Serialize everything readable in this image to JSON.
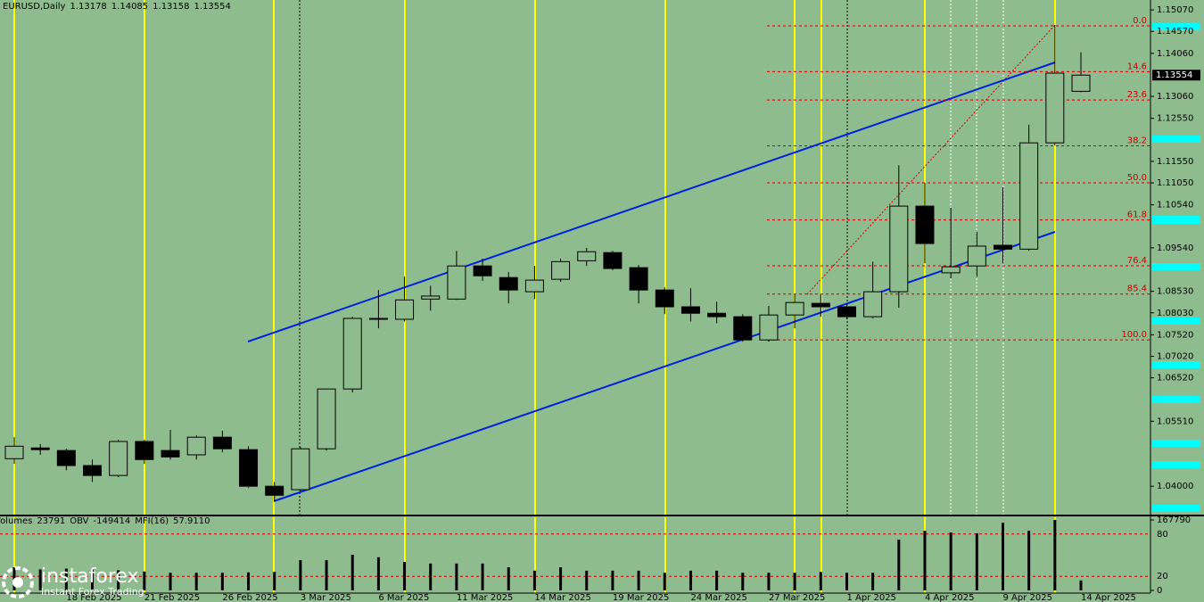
{
  "header": {
    "symbol": "EURUSD,Daily"
  },
  "watermark": {
    "brand": "instaforex",
    "tagline": "Instant Forex Trading"
  },
  "chart_data": [
    {
      "type": "candlestick",
      "title": "EURUSD,Daily",
      "categories": [
        null,
        null,
        "18 Feb 2025",
        null,
        null,
        "21 Feb 2025",
        null,
        null,
        "26 Feb 2025",
        null,
        null,
        "3 Mar 2025",
        null,
        null,
        "6 Mar 2025",
        null,
        null,
        "11 Mar 2025",
        null,
        null,
        "14 Mar 2025",
        null,
        null,
        "19 Mar 2025",
        null,
        null,
        "24 Mar 2025",
        null,
        null,
        "27 Mar 2025",
        null,
        null,
        "1 Apr 2025",
        null,
        null,
        "4 Apr 2025",
        null,
        null,
        "9 Apr 2025",
        null,
        null,
        "14 Apr 2025"
      ],
      "open": [
        1.0464,
        1.0489,
        1.0483,
        1.0448,
        1.0425,
        1.0504,
        1.0483,
        1.0473,
        1.0514,
        1.0485,
        1.04,
        1.0392,
        1.0487,
        1.0626,
        1.0788,
        1.0788,
        1.0835,
        1.0835,
        1.0912,
        1.0885,
        1.0852,
        1.0881,
        1.0924,
        1.0943,
        1.0908,
        1.0856,
        1.0817,
        1.0802,
        1.0794,
        1.074,
        1.0798,
        1.0825,
        1.0817,
        1.0794,
        1.0852,
        1.1051,
        1.0896,
        1.0912,
        1.096,
        1.0951,
        1.1198,
        1.13178
      ],
      "high": [
        1.0514,
        1.0498,
        1.0487,
        1.0462,
        1.0508,
        1.0508,
        1.0531,
        1.0518,
        1.0529,
        1.0493,
        1.041,
        1.0491,
        1.0626,
        1.0794,
        1.0856,
        1.0887,
        1.0866,
        1.0947,
        1.0929,
        1.0898,
        1.0912,
        1.0929,
        1.0954,
        1.0947,
        1.0914,
        1.0862,
        1.086,
        1.0829,
        1.08,
        1.0819,
        1.0846,
        1.0846,
        1.0825,
        1.0922,
        1.1146,
        1.1105,
        1.1047,
        1.0991,
        1.1095,
        1.124,
        1.1472,
        1.14085
      ],
      "low": [
        1.0452,
        1.0473,
        1.0437,
        1.041,
        1.0421,
        1.0452,
        1.0462,
        1.0462,
        1.0479,
        1.0396,
        1.0365,
        1.0388,
        1.0483,
        1.0618,
        1.0767,
        1.0783,
        1.0808,
        1.0833,
        1.0877,
        1.0825,
        1.0835,
        1.0875,
        1.0912,
        1.0902,
        1.0825,
        1.08,
        1.0783,
        1.0779,
        1.0736,
        1.0736,
        1.0767,
        1.0794,
        1.0788,
        1.079,
        1.0815,
        1.0918,
        1.0883,
        1.0887,
        1.0918,
        1.0947,
        1.1192,
        1.13158
      ],
      "close": [
        1.0493,
        1.0485,
        1.0448,
        1.0425,
        1.0504,
        1.0462,
        1.0468,
        1.0514,
        1.0487,
        1.04,
        1.0379,
        1.0487,
        1.0626,
        1.079,
        1.079,
        1.0833,
        1.0842,
        1.0912,
        1.0889,
        1.0856,
        1.0879,
        1.0922,
        1.0945,
        1.0906,
        1.0856,
        1.0817,
        1.0802,
        1.0794,
        1.074,
        1.0798,
        1.0827,
        1.0817,
        1.0794,
        1.0852,
        1.1051,
        1.0964,
        1.091,
        1.0958,
        1.0951,
        1.1198,
        1.136,
        1.13554
      ],
      "bull_color": "#8fbc8f",
      "bear_color": "#000000",
      "ylim": [
        1.0332,
        1.153
      ],
      "yticks": [
        {
          "value": 1.1507,
          "label": "1.15070"
        },
        {
          "value": 1.1457,
          "label": "1.14570"
        },
        {
          "value": 1.1406,
          "label": "1.14060"
        },
        {
          "value": 1.1306,
          "label": "1.13060"
        },
        {
          "value": 1.1255,
          "label": "1.12550"
        },
        {
          "value": 1.1155,
          "label": "1.11550"
        },
        {
          "value": 1.1105,
          "label": "1.11050"
        },
        {
          "value": 1.1054,
          "label": "1.10540"
        },
        {
          "value": 1.0954,
          "label": "1.09540"
        },
        {
          "value": 1.0853,
          "label": "1.08530"
        },
        {
          "value": 1.0803,
          "label": "1.08030"
        },
        {
          "value": 1.0752,
          "label": "1.07520"
        },
        {
          "value": 1.0702,
          "label": "1.07020"
        },
        {
          "value": 1.0652,
          "label": "1.06520"
        },
        {
          "value": 1.0551,
          "label": "1.05510"
        },
        {
          "value": 1.04,
          "label": "1.04000"
        }
      ],
      "fibonacci": {
        "high": 1.147,
        "low": 1.074,
        "color": "#cc0000",
        "levels": [
          {
            "value": 0,
            "label": "0.0"
          },
          14.6,
          23.6,
          38.2,
          {
            "value": 50,
            "label": "50.0"
          },
          61.8,
          76.4,
          85.4,
          {
            "value": 100,
            "label": "100.0"
          }
        ]
      }
    },
    {
      "type": "bar",
      "title": "Volumes",
      "color": "#000000",
      "values": [
        55000,
        50000,
        52000,
        50000,
        48000,
        45000,
        42000,
        42000,
        42000,
        43000,
        44000,
        72000,
        72000,
        85000,
        79000,
        68000,
        64000,
        64000,
        64000,
        55000,
        47000,
        55000,
        47000,
        47000,
        47000,
        42000,
        47000,
        47000,
        42000,
        42000,
        42000,
        44000,
        42000,
        42000,
        121000,
        142000,
        138000,
        136000,
        161000,
        142000,
        167790,
        23791
      ],
      "ylim": [
        0,
        167790
      ],
      "yticks": [
        0,
        167790
      ],
      "obv_label": "OBV",
      "obv": -149414,
      "mfi_label": "MFI(16)",
      "mfi": {
        "value": 57.911,
        "label": "57.9110"
      },
      "mfi_ylim": [
        0,
        100
      ],
      "mfi_levels": [
        80,
        20
      ],
      "mfi_level_color": "#cc0000"
    }
  ]
}
